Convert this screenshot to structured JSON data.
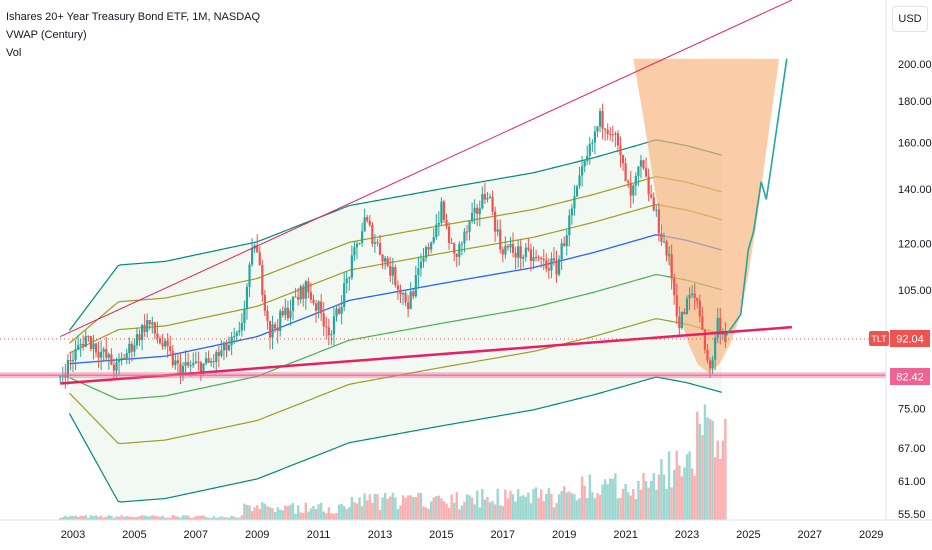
{
  "legend": {
    "title": "Ishares 20+ Year Treasury Bond ETF, 1M, NASDAQ",
    "indicator_1": "VWAP (Century)",
    "indicator_2": "Vol"
  },
  "currency_button": "USD",
  "colors": {
    "up": "#26a69a",
    "down": "#ef5350",
    "trendline": "#e91e63",
    "vwap": "#2962ff",
    "band_green": "#4caf50",
    "band_olive": "#9e9d24",
    "band_teal": "#00897b",
    "cone": "#f7b27a",
    "price_tag": "#ef5350",
    "support_tag": "#f06292"
  },
  "price_tags": {
    "ticker": "TLT",
    "last_price": "92.04",
    "support_price": "82.42"
  },
  "chart_data": {
    "type": "candlestick",
    "title": "Ishares 20+ Year Treasury Bond ETF, 1M, NASDAQ",
    "y_scale": "log",
    "y_ticks": [
      "200.00",
      "180.00",
      "160.00",
      "140.00",
      "120.00",
      "105.00",
      "75.00",
      "67.00",
      "61.00",
      "55.50"
    ],
    "x_ticks": [
      "2003",
      "2005",
      "2007",
      "2009",
      "2011",
      "2013",
      "2015",
      "2017",
      "2019",
      "2021",
      "2023",
      "2025",
      "2027",
      "2029"
    ],
    "price_path": [
      [
        "2002-08",
        82
      ],
      [
        "2003-06",
        92
      ],
      [
        "2004-06",
        84
      ],
      [
        "2005-06",
        96
      ],
      [
        "2006-06",
        84
      ],
      [
        "2007-06",
        85
      ],
      [
        "2008-06",
        92
      ],
      [
        "2008-12",
        121
      ],
      [
        "2009-06",
        93
      ],
      [
        "2010-08",
        106
      ],
      [
        "2011-06",
        93
      ],
      [
        "2012-07",
        128
      ],
      [
        "2013-12",
        101
      ],
      [
        "2015-01",
        132
      ],
      [
        "2015-06",
        115
      ],
      [
        "2016-07",
        140
      ],
      [
        "2016-12",
        119
      ],
      [
        "2018-10",
        112
      ],
      [
        "2019-08",
        146
      ],
      [
        "2020-03",
        171
      ],
      [
        "2020-08",
        166
      ],
      [
        "2021-03",
        136
      ],
      [
        "2021-07",
        150
      ],
      [
        "2022-06",
        114
      ],
      [
        "2022-10",
        95
      ],
      [
        "2023-02",
        103
      ],
      [
        "2023-05",
        102
      ],
      [
        "2023-10",
        83
      ],
      [
        "2024-01",
        96
      ],
      [
        "2024-04",
        92
      ]
    ],
    "projection_path": [
      [
        "2024-04",
        92
      ],
      [
        "2024-10",
        98
      ],
      [
        "2025-01",
        118
      ],
      [
        "2025-03",
        124
      ],
      [
        "2025-06",
        143
      ],
      [
        "2025-08",
        136
      ],
      [
        "2025-10",
        150
      ],
      [
        "2026-04",
        203
      ]
    ],
    "vwap": [
      [
        "2002-08",
        85
      ],
      [
        "2006-01",
        87
      ],
      [
        "2009-01",
        92
      ],
      [
        "2012-01",
        102
      ],
      [
        "2015-01",
        107
      ],
      [
        "2018-01",
        112
      ],
      [
        "2020-01",
        117
      ],
      [
        "2022-01",
        123
      ],
      [
        "2023-01",
        121
      ],
      [
        "2024-10",
        116
      ]
    ],
    "lines": [
      {
        "name": "upper trendline",
        "from": [
          "2002-08",
          92
        ],
        "to": [
          "2026-06",
          240
        ]
      },
      {
        "name": "rising support",
        "from": [
          "2002-08",
          80.5
        ],
        "to": [
          "2026-06",
          94.5
        ]
      },
      {
        "name": "horizontal support",
        "value": 82.42
      }
    ],
    "last_price": 92.04
  }
}
